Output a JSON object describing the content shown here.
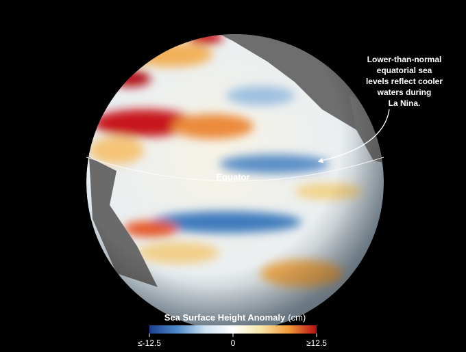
{
  "annotation": {
    "lines": [
      "Lower-than-normal",
      "equatorial sea",
      "levels reflect cooler",
      "waters during",
      "La Nina."
    ]
  },
  "equator_label": "Equator",
  "colorbar": {
    "title": "Sea Surface Height Anomaly",
    "unit": "(cm)",
    "lim": [
      -12.5,
      12.5
    ],
    "ticks": [
      {
        "value": -12.5,
        "label": "≤-12.5"
      },
      0,
      {
        "value": 12.5,
        "label": "≥12.5"
      }
    ],
    "colors": [
      "#1c3f8f",
      "#4f8bc9",
      "#cfe3f2",
      "#ffffff",
      "#f7e6a8",
      "#f29a3a",
      "#b30f12"
    ]
  }
}
